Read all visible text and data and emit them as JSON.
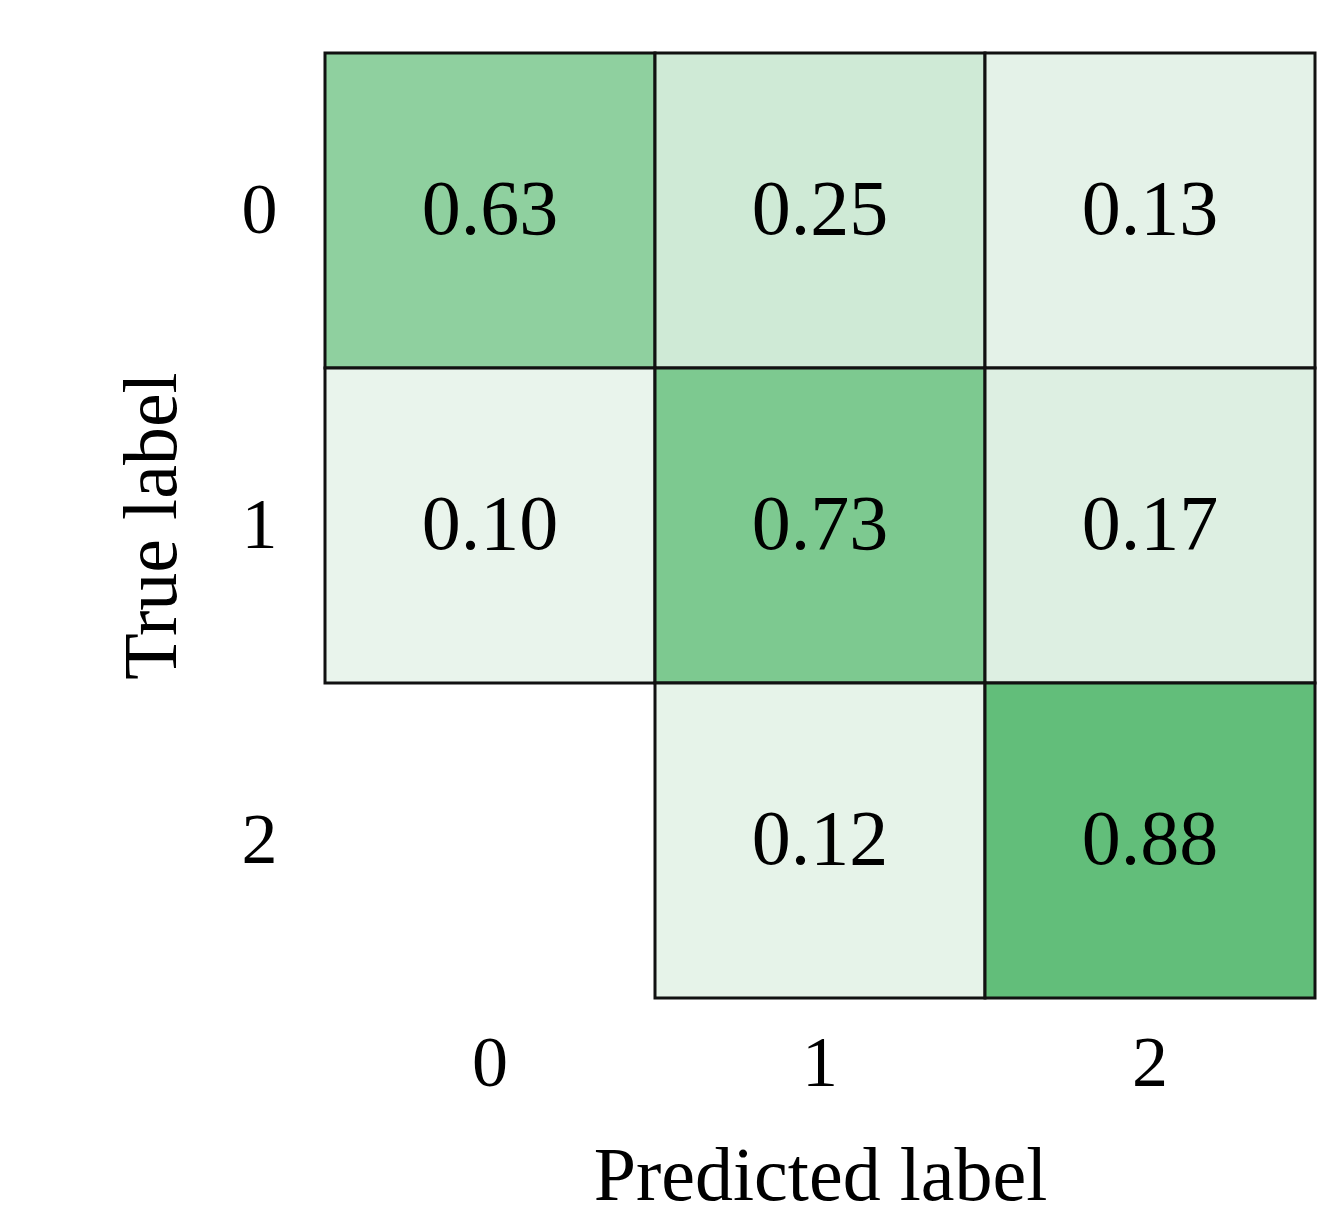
{
  "chart_data": {
    "type": "heatmap",
    "xlabel": "Predicted label",
    "ylabel": "True label",
    "categories": [
      "0",
      "1",
      "2"
    ],
    "y_categories": [
      "0",
      "1",
      "2"
    ],
    "cells": [
      [
        0.63,
        0.25,
        0.13
      ],
      [
        0.1,
        0.73,
        0.17
      ],
      [
        null,
        0.12,
        0.88
      ]
    ],
    "cell_labels": [
      [
        "0.63",
        "0.25",
        "0.13"
      ],
      [
        "0.10",
        "0.73",
        "0.17"
      ],
      [
        null,
        "0.12",
        "0.88"
      ]
    ]
  }
}
